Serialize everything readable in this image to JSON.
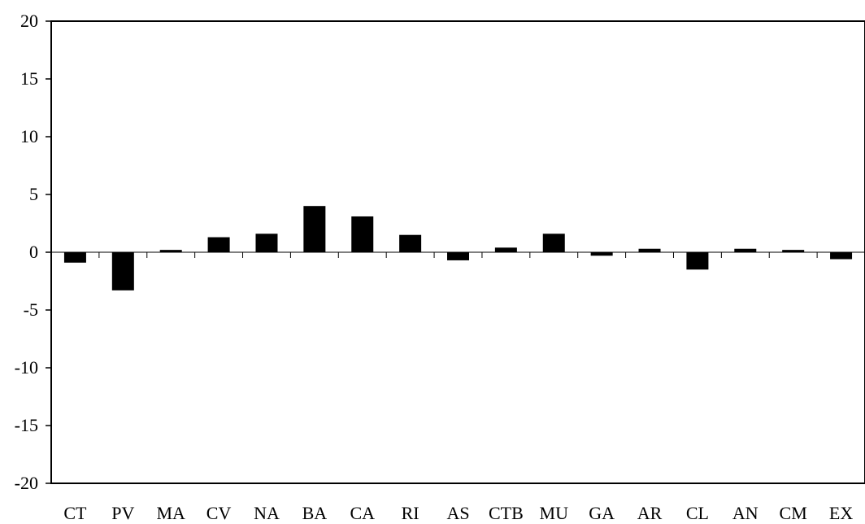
{
  "chart_data": {
    "type": "bar",
    "title": "",
    "xlabel": "",
    "ylabel": "",
    "categories": [
      "CT",
      "PV",
      "MA",
      "CV",
      "NA",
      "BA",
      "CA",
      "RI",
      "AS",
      "CTB",
      "MU",
      "GA",
      "AR",
      "CL",
      "AN",
      "CM",
      "EX"
    ],
    "values": [
      -0.9,
      -3.3,
      0.2,
      1.3,
      1.6,
      4.0,
      3.1,
      1.5,
      -0.7,
      0.4,
      1.6,
      -0.3,
      0.3,
      -1.5,
      0.3,
      0.2,
      -0.6
    ],
    "ylim": [
      -20,
      20
    ],
    "yticks": [
      -20,
      -15,
      -10,
      -5,
      0,
      5,
      10,
      15,
      20
    ],
    "grid": false,
    "legend": "none",
    "bar_color": "#000000"
  }
}
